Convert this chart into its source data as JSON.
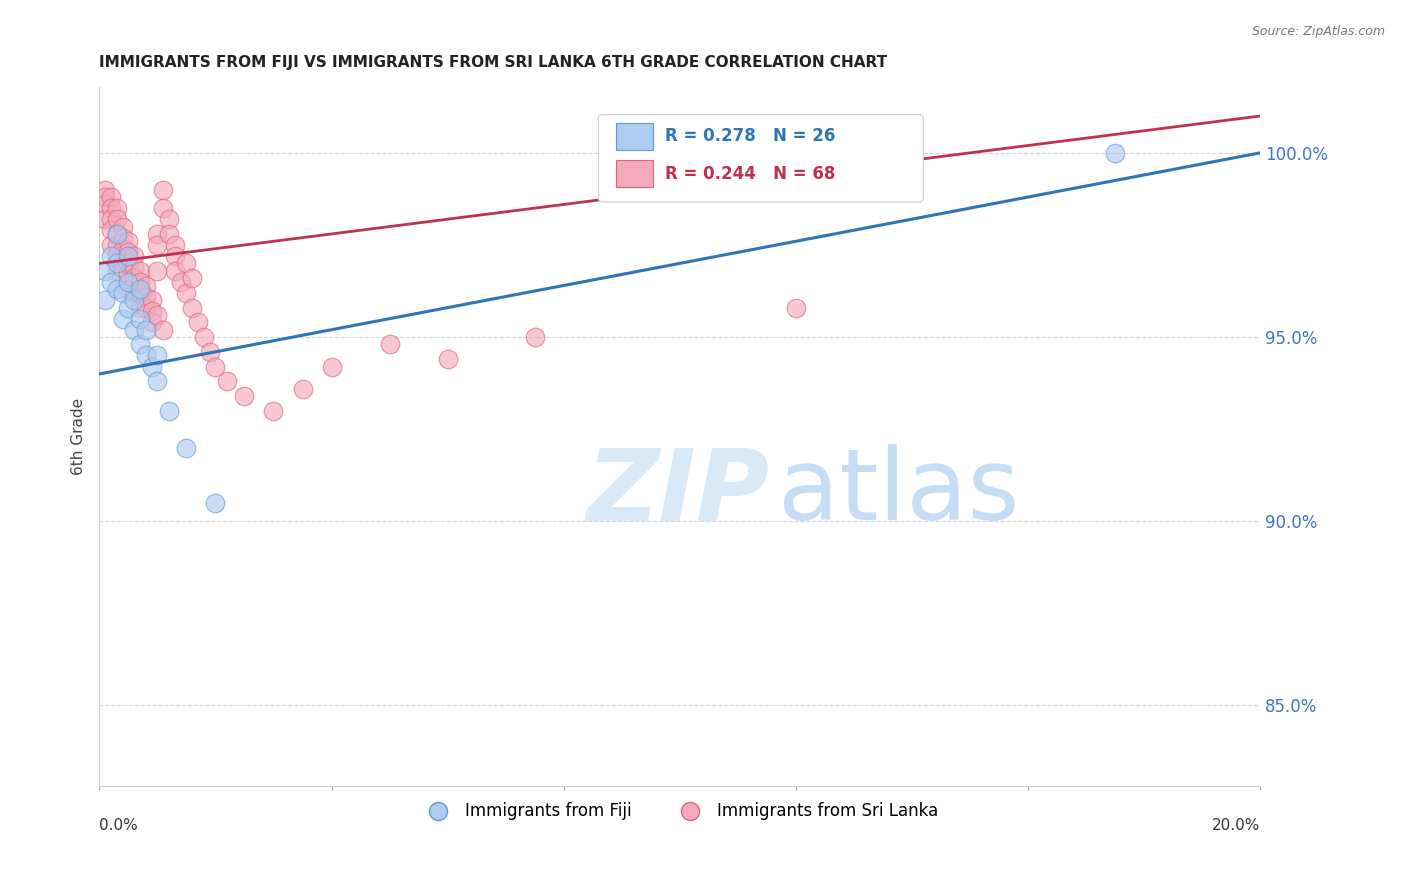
{
  "title": "IMMIGRANTS FROM FIJI VS IMMIGRANTS FROM SRI LANKA 6TH GRADE CORRELATION CHART",
  "source": "Source: ZipAtlas.com",
  "ylabel": "6th Grade",
  "ytick_labels": [
    "100.0%",
    "95.0%",
    "90.0%",
    "85.0%"
  ],
  "ytick_values": [
    1.0,
    0.95,
    0.9,
    0.85
  ],
  "xlim": [
    0.0,
    0.2
  ],
  "ylim": [
    0.828,
    1.018
  ],
  "legend_fiji_r": "R = 0.278",
  "legend_fiji_n": "N = 26",
  "legend_srilanka_r": "R = 0.244",
  "legend_srilanka_n": "N = 68",
  "fiji_color": "#aecbf0",
  "fiji_edge_color": "#5b9bd5",
  "fiji_line_color": "#2e75b6",
  "srilanka_color": "#f4aabc",
  "srilanka_edge_color": "#e06080",
  "srilanka_line_color": "#c0314f",
  "watermark_zip_color": "#d8eaf8",
  "watermark_atlas_color": "#c5def5",
  "fiji_scatter_x": [
    0.001,
    0.001,
    0.002,
    0.002,
    0.003,
    0.003,
    0.003,
    0.004,
    0.004,
    0.005,
    0.005,
    0.005,
    0.006,
    0.006,
    0.007,
    0.007,
    0.007,
    0.008,
    0.008,
    0.009,
    0.01,
    0.01,
    0.012,
    0.015,
    0.02,
    0.175
  ],
  "fiji_scatter_y": [
    0.968,
    0.96,
    0.965,
    0.972,
    0.963,
    0.97,
    0.978,
    0.955,
    0.962,
    0.958,
    0.965,
    0.972,
    0.952,
    0.96,
    0.948,
    0.955,
    0.963,
    0.945,
    0.952,
    0.942,
    0.938,
    0.945,
    0.93,
    0.92,
    0.905,
    1.0
  ],
  "srilanka_scatter_x": [
    0.001,
    0.001,
    0.001,
    0.001,
    0.002,
    0.002,
    0.002,
    0.002,
    0.002,
    0.003,
    0.003,
    0.003,
    0.003,
    0.003,
    0.003,
    0.004,
    0.004,
    0.004,
    0.004,
    0.005,
    0.005,
    0.005,
    0.005,
    0.005,
    0.006,
    0.006,
    0.006,
    0.006,
    0.007,
    0.007,
    0.007,
    0.007,
    0.008,
    0.008,
    0.008,
    0.009,
    0.009,
    0.009,
    0.01,
    0.01,
    0.01,
    0.01,
    0.011,
    0.011,
    0.011,
    0.012,
    0.012,
    0.013,
    0.013,
    0.013,
    0.014,
    0.015,
    0.015,
    0.016,
    0.016,
    0.017,
    0.018,
    0.019,
    0.02,
    0.022,
    0.025,
    0.03,
    0.035,
    0.04,
    0.05,
    0.06,
    0.075,
    0.12
  ],
  "srilanka_scatter_y": [
    0.99,
    0.988,
    0.986,
    0.982,
    0.988,
    0.985,
    0.982,
    0.979,
    0.975,
    0.985,
    0.982,
    0.978,
    0.975,
    0.972,
    0.968,
    0.98,
    0.977,
    0.974,
    0.97,
    0.976,
    0.973,
    0.97,
    0.967,
    0.963,
    0.972,
    0.969,
    0.966,
    0.962,
    0.968,
    0.965,
    0.962,
    0.958,
    0.964,
    0.961,
    0.958,
    0.96,
    0.957,
    0.954,
    0.978,
    0.975,
    0.968,
    0.956,
    0.99,
    0.985,
    0.952,
    0.982,
    0.978,
    0.975,
    0.972,
    0.968,
    0.965,
    0.97,
    0.962,
    0.966,
    0.958,
    0.954,
    0.95,
    0.946,
    0.942,
    0.938,
    0.934,
    0.93,
    0.936,
    0.942,
    0.948,
    0.944,
    0.95,
    0.958
  ],
  "fiji_trendline_x0": 0.0,
  "fiji_trendline_y0": 0.94,
  "fiji_trendline_x1": 0.2,
  "fiji_trendline_y1": 1.0,
  "srilanka_trendline_x0": 0.0,
  "srilanka_trendline_y0": 0.97,
  "srilanka_trendline_x1": 0.2,
  "srilanka_trendline_y1": 1.01
}
